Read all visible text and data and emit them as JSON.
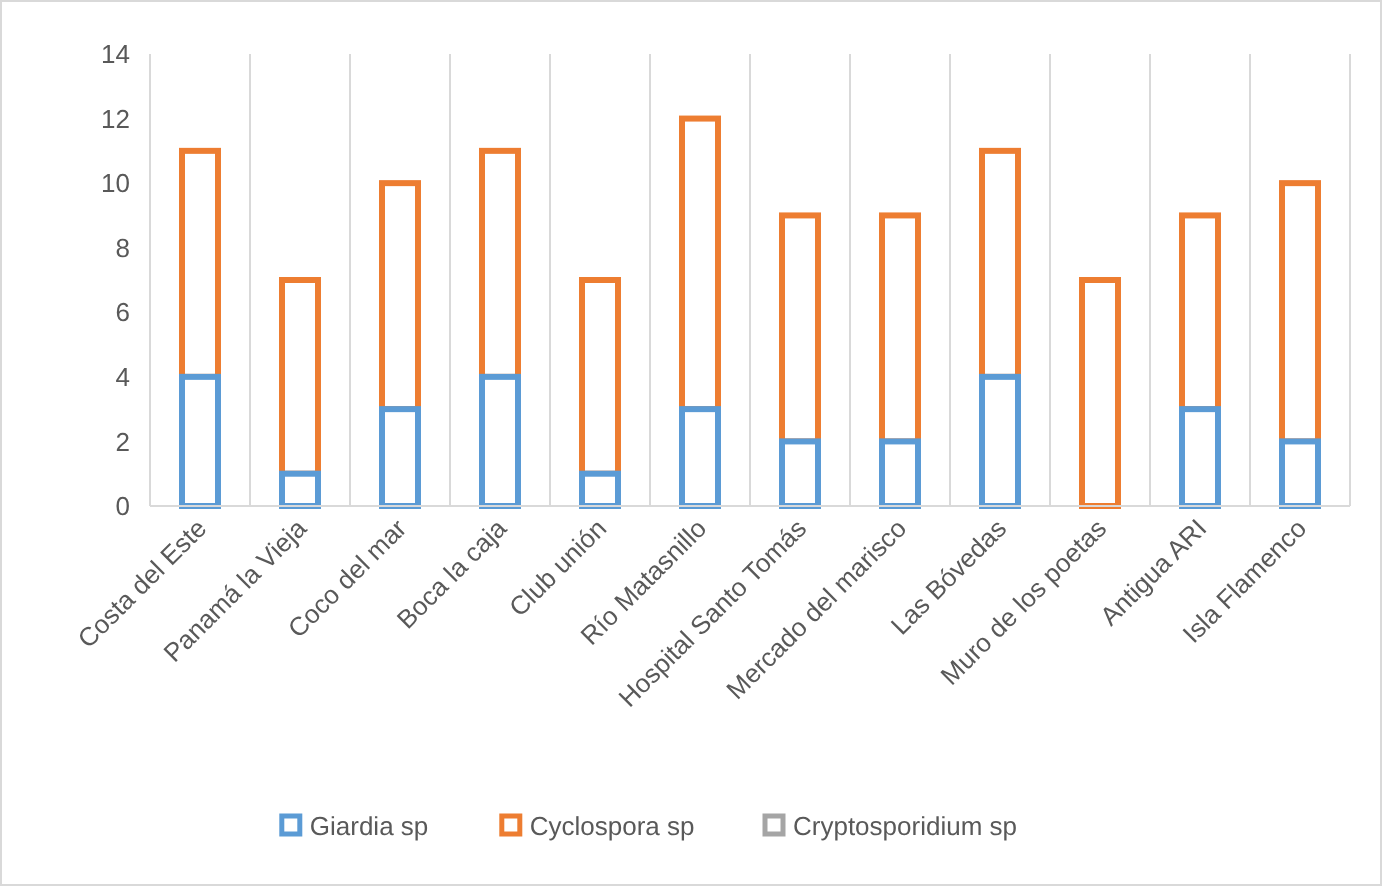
{
  "chart_data": {
    "type": "bar",
    "stacked": true,
    "categories": [
      "Costa del Este",
      "Panamá la Vieja",
      "Coco del mar",
      "Boca la caja",
      "Club unión",
      "Río Matasnillo",
      "Hospital Santo Tomás",
      "Mercado del marisco",
      "Las Bóvedas",
      "Muro de los poetas",
      "Antigua ARI",
      "Isla Flamenco"
    ],
    "series": [
      {
        "name": "Giardia sp",
        "color": "#5b9bd5",
        "values": [
          4,
          1,
          3,
          4,
          1,
          3,
          2,
          2,
          4,
          0,
          3,
          2
        ]
      },
      {
        "name": "Cyclospora sp",
        "color": "#ed7d31",
        "values": [
          7,
          6,
          7,
          7,
          6,
          9,
          7,
          7,
          7,
          7,
          6,
          8
        ]
      },
      {
        "name": "Cryptosporidium sp",
        "color": "#a5a5a5",
        "values": [
          0,
          0,
          0,
          0,
          0,
          0,
          0,
          0,
          0,
          0,
          0,
          0
        ]
      }
    ],
    "ylim": [
      0,
      14
    ],
    "yticks": [
      0,
      2,
      4,
      6,
      8,
      10,
      12,
      14
    ],
    "grid": "x",
    "legend": "bottom"
  }
}
